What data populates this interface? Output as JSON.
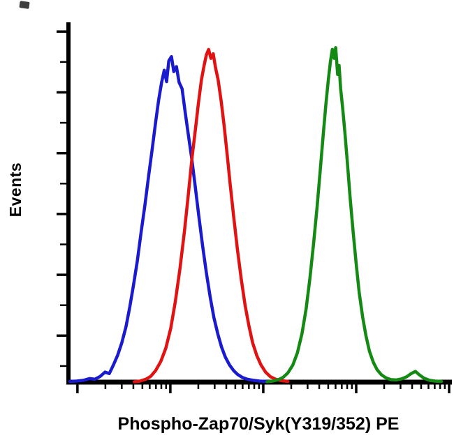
{
  "chart_data": {
    "type": "line",
    "subtype": "flow-cytometry-histogram-overlay",
    "title": "",
    "xlabel": "Phospho-Zap70/Syk(Y319/352) PE",
    "ylabel": "Events",
    "x_scale": "log",
    "x_decades": 4,
    "y_scale": "linear",
    "y_tick_count": 12,
    "grid": false,
    "legend": "none",
    "background_color": "#ffffff",
    "axis_color": "#000000",
    "points_format": "[x_fraction_of_axis, height_fraction_of_plot]",
    "series": [
      {
        "name": "blue-population",
        "color": "#1a1ace",
        "peak_x_fraction": 0.268,
        "peak_height_fraction": 0.91,
        "points": [
          [
            0.0,
            0.002
          ],
          [
            0.018,
            0.003
          ],
          [
            0.036,
            0.005
          ],
          [
            0.052,
            0.01
          ],
          [
            0.066,
            0.008
          ],
          [
            0.08,
            0.016
          ],
          [
            0.093,
            0.028
          ],
          [
            0.104,
            0.024
          ],
          [
            0.115,
            0.048
          ],
          [
            0.126,
            0.075
          ],
          [
            0.137,
            0.11
          ],
          [
            0.148,
            0.155
          ],
          [
            0.158,
            0.21
          ],
          [
            0.168,
            0.272
          ],
          [
            0.178,
            0.34
          ],
          [
            0.188,
            0.42
          ],
          [
            0.198,
            0.495
          ],
          [
            0.208,
            0.578
          ],
          [
            0.217,
            0.65
          ],
          [
            0.226,
            0.725
          ],
          [
            0.234,
            0.788
          ],
          [
            0.242,
            0.838
          ],
          [
            0.249,
            0.872
          ],
          [
            0.255,
            0.84
          ],
          [
            0.261,
            0.898
          ],
          [
            0.268,
            0.91
          ],
          [
            0.274,
            0.868
          ],
          [
            0.281,
            0.882
          ],
          [
            0.288,
            0.838
          ],
          [
            0.296,
            0.82
          ],
          [
            0.304,
            0.755
          ],
          [
            0.312,
            0.695
          ],
          [
            0.321,
            0.628
          ],
          [
            0.33,
            0.552
          ],
          [
            0.34,
            0.465
          ],
          [
            0.35,
            0.382
          ],
          [
            0.36,
            0.305
          ],
          [
            0.37,
            0.238
          ],
          [
            0.38,
            0.18
          ],
          [
            0.39,
            0.135
          ],
          [
            0.4,
            0.098
          ],
          [
            0.41,
            0.07
          ],
          [
            0.421,
            0.048
          ],
          [
            0.432,
            0.032
          ],
          [
            0.443,
            0.021
          ],
          [
            0.455,
            0.013
          ],
          [
            0.468,
            0.008
          ],
          [
            0.483,
            0.005
          ],
          [
            0.5,
            0.003
          ],
          [
            0.52,
            0.002
          ]
        ]
      },
      {
        "name": "red-population",
        "color": "#e01212",
        "peak_x_fraction": 0.37,
        "peak_height_fraction": 0.93,
        "points": [
          [
            0.17,
            0.001
          ],
          [
            0.185,
            0.003
          ],
          [
            0.2,
            0.008
          ],
          [
            0.213,
            0.016
          ],
          [
            0.226,
            0.032
          ],
          [
            0.24,
            0.058
          ],
          [
            0.253,
            0.095
          ],
          [
            0.266,
            0.15
          ],
          [
            0.278,
            0.225
          ],
          [
            0.29,
            0.315
          ],
          [
            0.302,
            0.42
          ],
          [
            0.312,
            0.52
          ],
          [
            0.322,
            0.625
          ],
          [
            0.331,
            0.705
          ],
          [
            0.339,
            0.78
          ],
          [
            0.347,
            0.845
          ],
          [
            0.354,
            0.885
          ],
          [
            0.36,
            0.915
          ],
          [
            0.366,
            0.93
          ],
          [
            0.372,
            0.905
          ],
          [
            0.378,
            0.918
          ],
          [
            0.384,
            0.88
          ],
          [
            0.391,
            0.845
          ],
          [
            0.399,
            0.785
          ],
          [
            0.407,
            0.715
          ],
          [
            0.415,
            0.635
          ],
          [
            0.423,
            0.55
          ],
          [
            0.432,
            0.462
          ],
          [
            0.442,
            0.37
          ],
          [
            0.452,
            0.288
          ],
          [
            0.462,
            0.215
          ],
          [
            0.472,
            0.158
          ],
          [
            0.482,
            0.11
          ],
          [
            0.493,
            0.074
          ],
          [
            0.504,
            0.048
          ],
          [
            0.516,
            0.028
          ],
          [
            0.529,
            0.015
          ],
          [
            0.543,
            0.008
          ],
          [
            0.558,
            0.004
          ],
          [
            0.575,
            0.002
          ]
        ]
      },
      {
        "name": "green-population",
        "color": "#148a14",
        "peak_x_fraction": 0.695,
        "peak_height_fraction": 0.935,
        "points": [
          [
            0.52,
            0.001
          ],
          [
            0.534,
            0.003
          ],
          [
            0.548,
            0.006
          ],
          [
            0.562,
            0.013
          ],
          [
            0.575,
            0.026
          ],
          [
            0.588,
            0.048
          ],
          [
            0.6,
            0.082
          ],
          [
            0.612,
            0.135
          ],
          [
            0.623,
            0.205
          ],
          [
            0.633,
            0.29
          ],
          [
            0.643,
            0.39
          ],
          [
            0.652,
            0.49
          ],
          [
            0.66,
            0.59
          ],
          [
            0.668,
            0.69
          ],
          [
            0.675,
            0.775
          ],
          [
            0.681,
            0.84
          ],
          [
            0.687,
            0.895
          ],
          [
            0.692,
            0.93
          ],
          [
            0.697,
            0.905
          ],
          [
            0.701,
            0.935
          ],
          [
            0.706,
            0.86
          ],
          [
            0.71,
            0.885
          ],
          [
            0.714,
            0.82
          ],
          [
            0.719,
            0.77
          ],
          [
            0.725,
            0.7
          ],
          [
            0.732,
            0.61
          ],
          [
            0.739,
            0.515
          ],
          [
            0.747,
            0.42
          ],
          [
            0.755,
            0.33
          ],
          [
            0.763,
            0.25
          ],
          [
            0.772,
            0.182
          ],
          [
            0.781,
            0.128
          ],
          [
            0.79,
            0.086
          ],
          [
            0.8,
            0.056
          ],
          [
            0.81,
            0.035
          ],
          [
            0.821,
            0.021
          ],
          [
            0.833,
            0.012
          ],
          [
            0.846,
            0.007
          ],
          [
            0.86,
            0.006
          ],
          [
            0.874,
            0.009
          ],
          [
            0.888,
            0.015
          ],
          [
            0.9,
            0.024
          ],
          [
            0.911,
            0.03
          ],
          [
            0.922,
            0.02
          ],
          [
            0.934,
            0.011
          ],
          [
            0.948,
            0.005
          ],
          [
            0.963,
            0.003
          ],
          [
            0.98,
            0.002
          ]
        ]
      }
    ]
  }
}
